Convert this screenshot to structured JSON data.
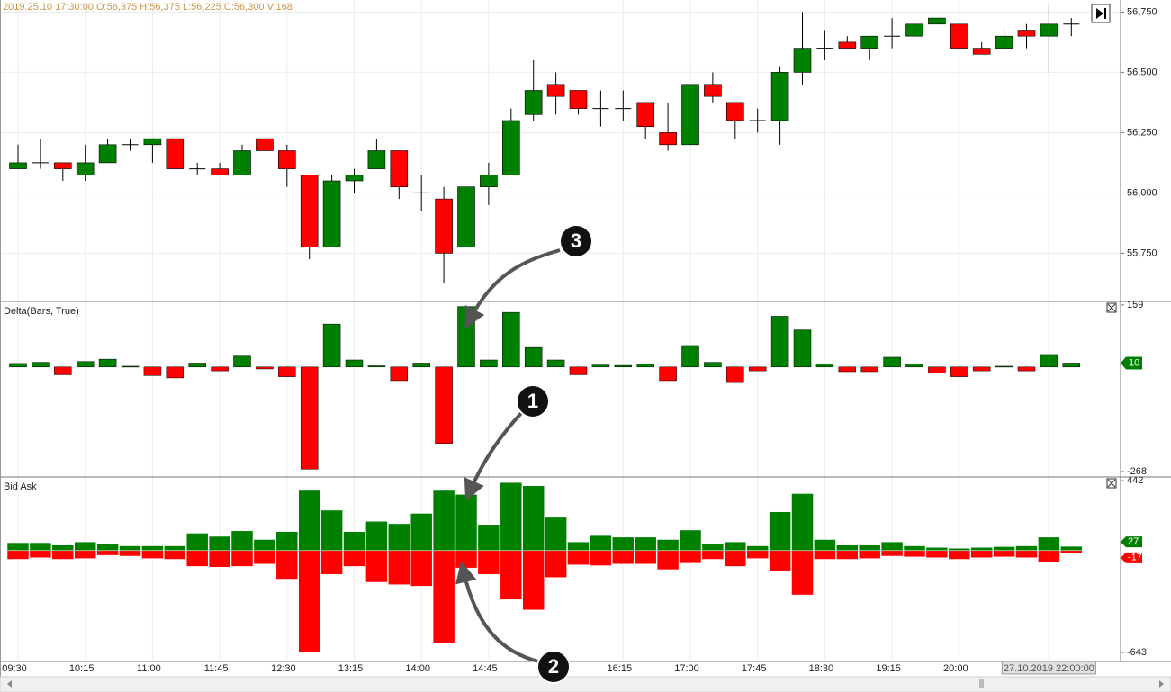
{
  "chart_data": [
    {
      "type": "candlestick",
      "title": "2019.25.10 17:30:00 O:56,375 H:56,375 L:56,225 C:56,300 V:168",
      "open": [
        56100,
        56125,
        56125,
        56075,
        56125,
        56200,
        56200,
        56225,
        56100,
        56100,
        56075,
        56225,
        56175,
        56075,
        55775,
        56050,
        56100,
        56175,
        56000,
        55975,
        55775,
        56025,
        56075,
        56325,
        56450,
        56425,
        56350,
        56350,
        56375,
        56250,
        56200,
        56450,
        56375,
        56300,
        56300,
        56500,
        56600,
        56625,
        56600,
        56650,
        56650,
        56700,
        56700,
        56600,
        56600,
        56675,
        56650,
        56700
      ],
      "high": [
        56200,
        56225,
        56125,
        56200,
        56225,
        56225,
        56225,
        56225,
        56125,
        56125,
        56200,
        56225,
        56200,
        56075,
        56075,
        56100,
        56225,
        56175,
        56075,
        56025,
        56025,
        56125,
        56350,
        56550,
        56500,
        56425,
        56425,
        56425,
        56375,
        56375,
        56450,
        56500,
        56375,
        56350,
        56525,
        56750,
        56675,
        56650,
        56650,
        56725,
        56700,
        56725,
        56700,
        56625,
        56675,
        56700,
        56775,
        56725
      ],
      "low": [
        56100,
        56100,
        56050,
        56050,
        56125,
        56175,
        56125,
        56100,
        56075,
        56075,
        56075,
        56175,
        56025,
        55725,
        55775,
        56000,
        56100,
        55975,
        55925,
        55625,
        55775,
        55950,
        56075,
        56300,
        56325,
        56325,
        56275,
        56300,
        56225,
        56175,
        56200,
        56375,
        56225,
        56250,
        56200,
        56450,
        56550,
        56600,
        56550,
        56600,
        56650,
        56700,
        56600,
        56575,
        56600,
        56600,
        56500,
        56650
      ],
      "close": [
        56125,
        56125,
        56100,
        56125,
        56200,
        56200,
        56225,
        56100,
        56100,
        56075,
        56175,
        56175,
        56100,
        55775,
        56050,
        56075,
        56175,
        56025,
        56000,
        55750,
        56025,
        56075,
        56300,
        56425,
        56400,
        56350,
        56350,
        56350,
        56275,
        56200,
        56450,
        56400,
        56300,
        56300,
        56500,
        56600,
        56600,
        56600,
        56650,
        56650,
        56700,
        56725,
        56600,
        56575,
        56650,
        56650,
        56700,
        56700
      ],
      "up_color": "#008000",
      "down_color": "#ff0000",
      "ylim": [
        55550,
        56800
      ],
      "yticks": [
        {
          "value": 55750,
          "label": "55,750"
        },
        {
          "value": 56000,
          "label": "56,000"
        },
        {
          "value": 56250,
          "label": "56,250"
        },
        {
          "value": 56500,
          "label": "56,500"
        },
        {
          "value": 56750,
          "label": "56,750"
        }
      ],
      "grid": true
    },
    {
      "type": "delta",
      "title": "Delta(Bars, True)",
      "values": [
        9,
        12,
        -20,
        14,
        20,
        2,
        -22,
        -28,
        10,
        -10,
        28,
        -5,
        -25,
        -262,
        110,
        18,
        3,
        -35,
        10,
        -196,
        155,
        18,
        140,
        50,
        18,
        -20,
        5,
        4,
        7,
        -35,
        55,
        12,
        -40,
        -10,
        130,
        95,
        8,
        -12,
        -12,
        25,
        8,
        -15,
        -25,
        -10,
        2,
        -10,
        32,
        10
      ],
      "up_color": "#008000",
      "down_color": "#ff0000",
      "ylim": [
        -282,
        168
      ],
      "yticks": [
        -268,
        159
      ]
    },
    {
      "type": "bidask",
      "title": "Bid Ask",
      "categories": [
        "09:30",
        null,
        null,
        "10:15",
        null,
        null,
        "11:00",
        null,
        null,
        "11:45",
        null,
        null,
        "12:30",
        null,
        null,
        "13:15",
        null,
        null,
        "14:00",
        null,
        null,
        "14:45",
        null,
        null,
        null,
        null,
        null,
        "16:15",
        null,
        null,
        "17:00",
        null,
        null,
        "17:45",
        null,
        null,
        "18:30",
        null,
        null,
        "19:15",
        null,
        null,
        "20:00",
        null,
        null,
        null,
        null,
        null
      ],
      "series": [
        {
          "color": "#008000",
          "values": [
            50,
            50,
            35,
            55,
            45,
            30,
            30,
            30,
            110,
            90,
            125,
            70,
            120,
            380,
            255,
            120,
            185,
            170,
            235,
            380,
            355,
            165,
            430,
            410,
            210,
            55,
            95,
            85,
            85,
            70,
            130,
            45,
            55,
            30,
            245,
            360,
            70,
            35,
            35,
            55,
            30,
            20,
            15,
            20,
            25,
            30,
            85,
            27
          ]
        },
        {
          "color": "#ff0000",
          "values": [
            -55,
            -45,
            -55,
            -50,
            -30,
            -35,
            -50,
            -55,
            -100,
            -105,
            -100,
            -85,
            -180,
            -640,
            -150,
            -100,
            -200,
            -215,
            -225,
            -585,
            -110,
            -150,
            -310,
            -375,
            -170,
            -90,
            -95,
            -85,
            -85,
            -120,
            -80,
            -55,
            -100,
            -50,
            -130,
            -280,
            -55,
            -55,
            -50,
            -35,
            -40,
            -45,
            -55,
            -45,
            -40,
            -45,
            -75,
            -17
          ]
        }
      ],
      "ylim": [
        -700,
        465
      ],
      "yticks": [
        -643,
        442
      ],
      "crosshair_label": "27.10.2019 22:00:00"
    }
  ],
  "annotations": [
    "1",
    "2",
    "3"
  ]
}
